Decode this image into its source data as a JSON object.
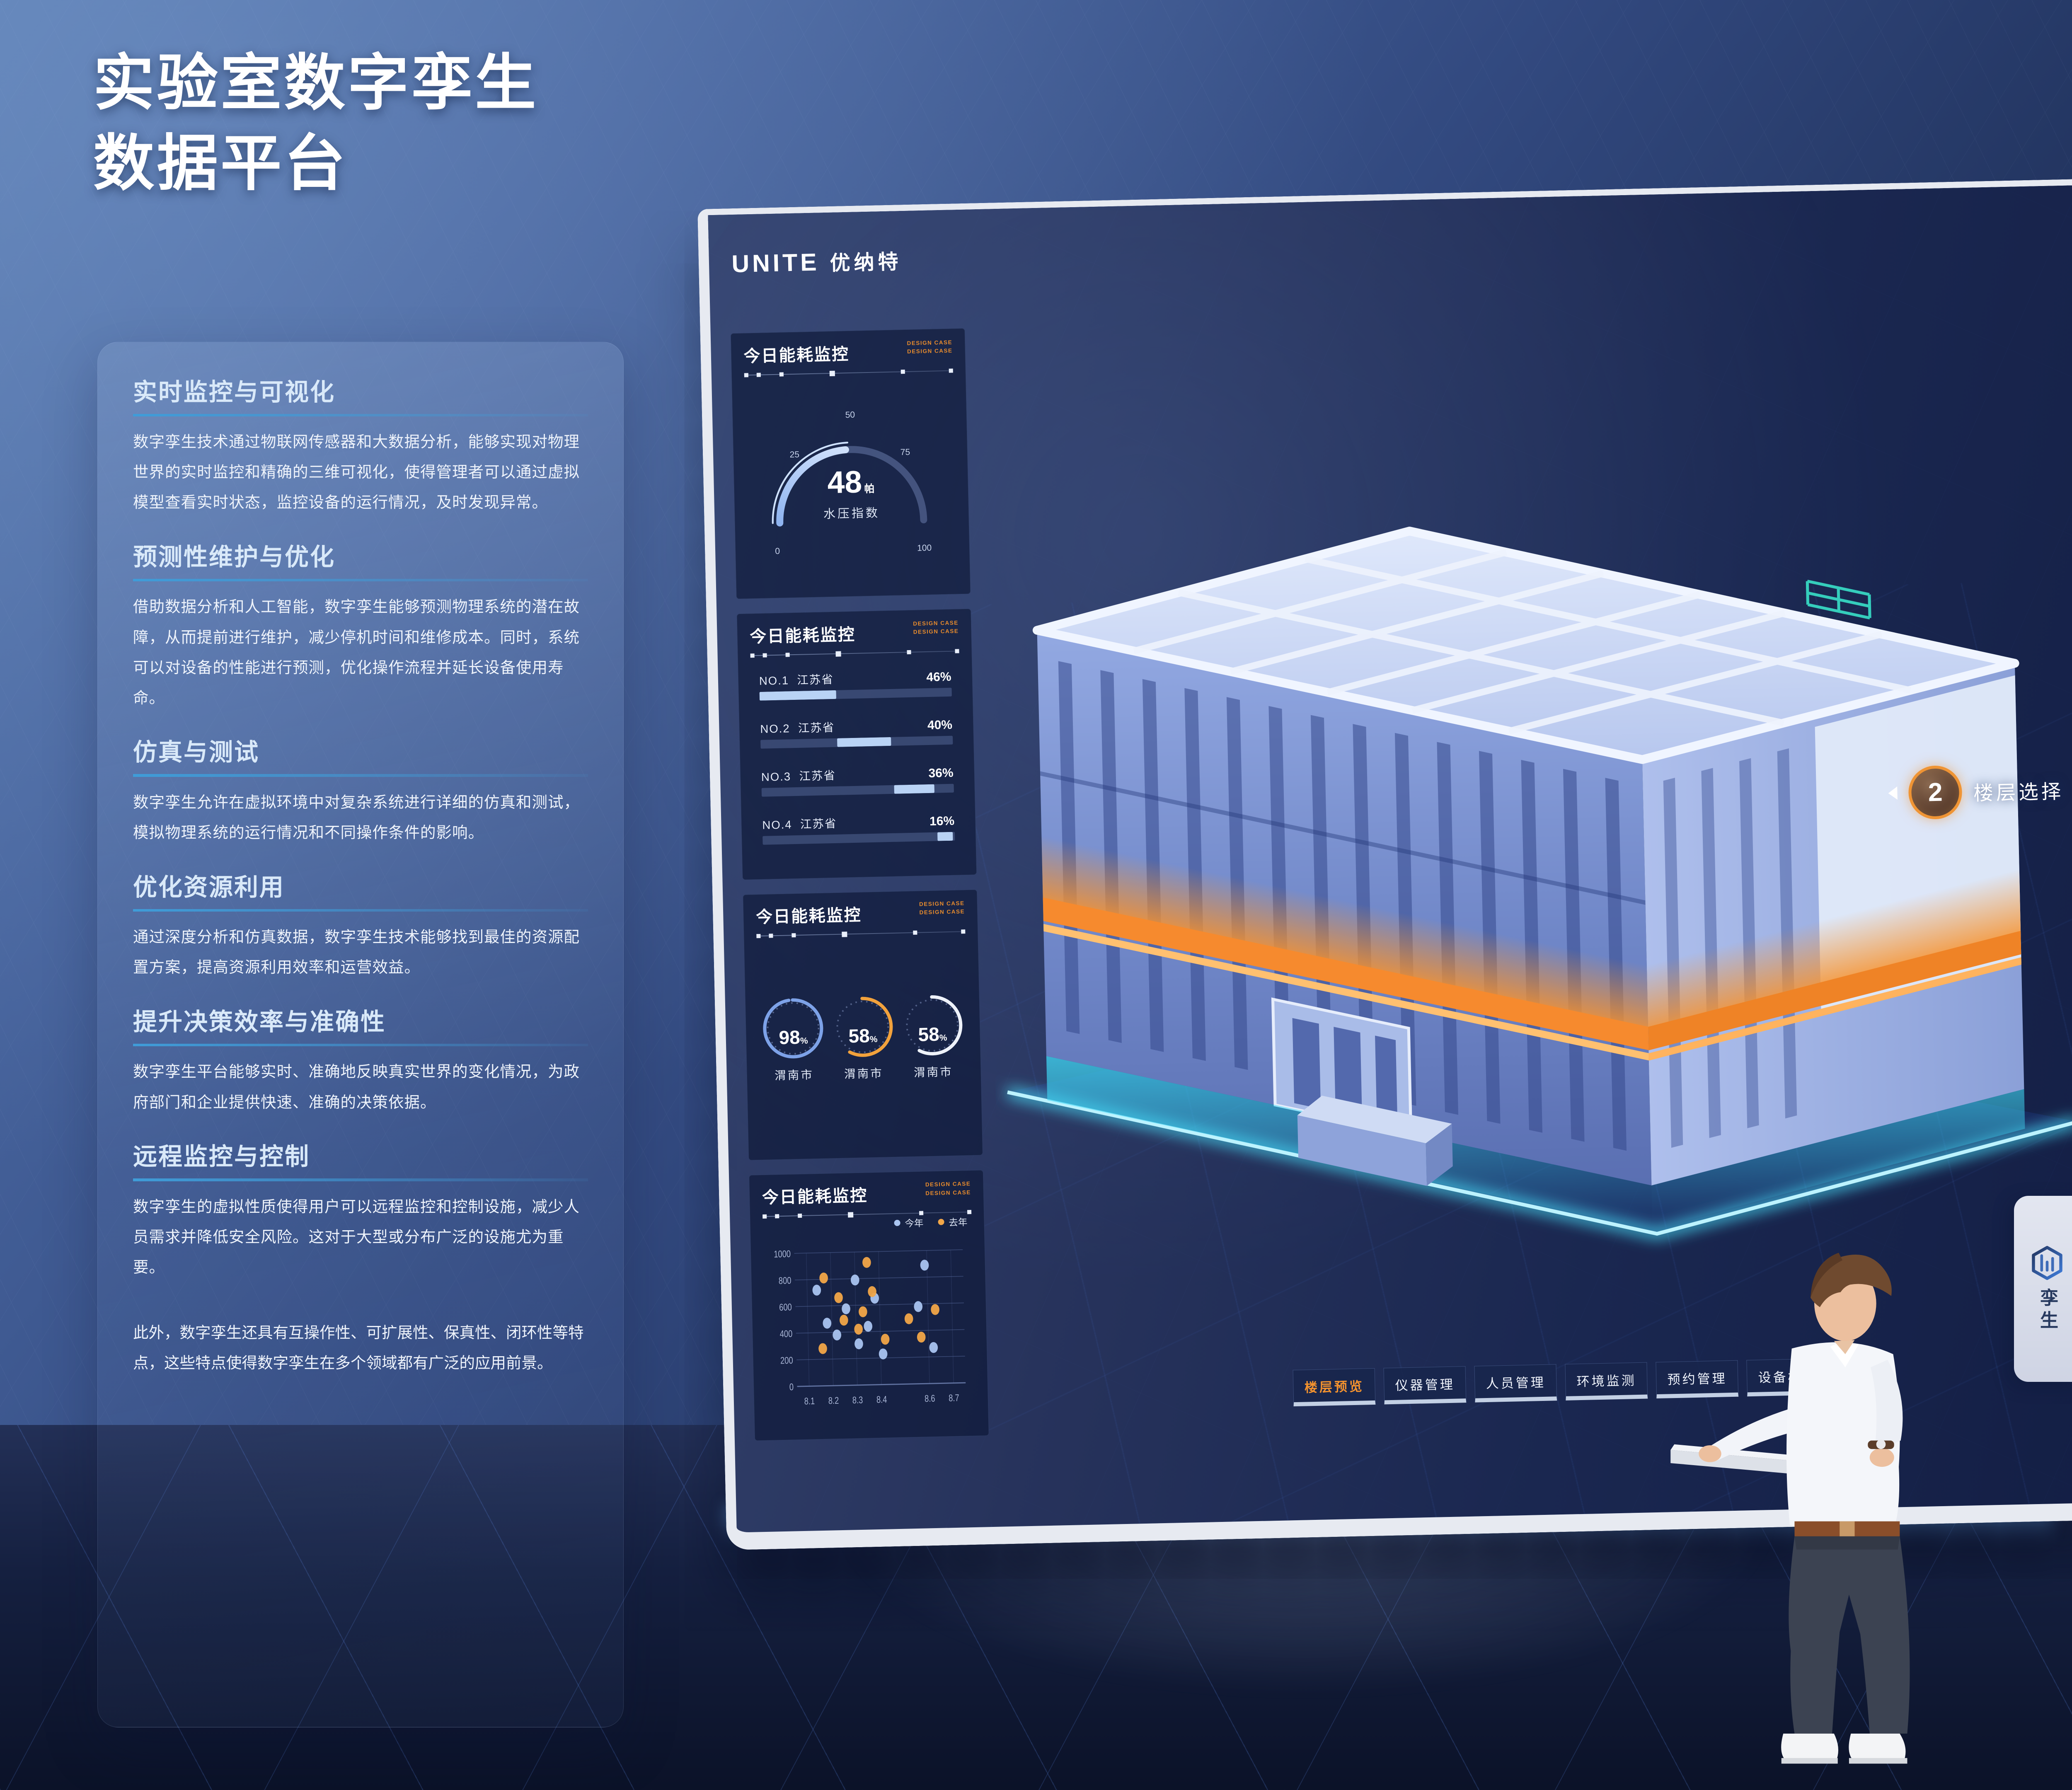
{
  "page": {
    "title_line1": "实验室数字孪生",
    "title_line2": "数据平台"
  },
  "sidebar": {
    "sections": [
      {
        "heading": "实时监控与可视化",
        "body": "数字孪生技术通过物联网传感器和大数据分析，能够实现对物理世界的实时监控和精确的三维可视化，使得管理者可以通过虚拟模型查看实时状态，监控设备的运行情况，及时发现异常。"
      },
      {
        "heading": "预测性维护与优化",
        "body": "借助数据分析和人工智能，数字孪生能够预测物理系统的潜在故障，从而提前进行维护，减少停机时间和维修成本。同时，系统可以对设备的性能进行预测，优化操作流程并延长设备使用寿命。"
      },
      {
        "heading": "仿真与测试",
        "body": "数字孪生允许在虚拟环境中对复杂系统进行详细的仿真和测试，模拟物理系统的运行情况和不同操作条件的影响。"
      },
      {
        "heading": "优化资源利用",
        "body": "通过深度分析和仿真数据，数字孪生技术能够找到最佳的资源配置方案，提高资源利用效率和运营效益。"
      },
      {
        "heading": "提升决策效率与准确性",
        "body": "数字孪生平台能够实时、准确地反映真实世界的变化情况，为政府部门和企业提供快速、准确的决策依据。"
      },
      {
        "heading": "远程监控与控制",
        "body": "数字孪生的虚拟性质使得用户可以远程监控和控制设施，减少人员需求并降低安全风险。这对于大型或分布广泛的设施尤为重要。"
      }
    ],
    "footer": "此外，数字孪生还具有互操作性、可扩展性、保真性、闭环性等特点，这些特点使得数字孪生在多个领域都有广泛的应用前景。"
  },
  "screen": {
    "logo": {
      "en": "UNITE",
      "cn": "优纳特"
    },
    "badge_line1": "DESIGN CASE",
    "badge_line2": "DESIGN CASE"
  },
  "tabs": [
    {
      "label": "楼层预览",
      "active": true
    },
    {
      "label": "仪器管理",
      "active": false
    },
    {
      "label": "人员管理",
      "active": false
    },
    {
      "label": "环境监测",
      "active": false
    },
    {
      "label": "预约管理",
      "active": false
    },
    {
      "label": "设备概况",
      "active": false
    }
  ],
  "floor_selector": {
    "current": "2",
    "label": "楼层选择"
  },
  "side_tab": {
    "label": "孪生"
  },
  "chart_data": [
    {
      "type": "gauge",
      "title": "今日能耗监控",
      "value": 48,
      "unit": "帕",
      "label": "水压指数",
      "min": 0,
      "max": 100,
      "ticks": [
        "0",
        "25",
        "50",
        "75",
        "100"
      ]
    },
    {
      "type": "bar",
      "title": "今日能耗监控",
      "unit": "%",
      "rows": [
        {
          "rank": "NO.1",
          "name": "江苏省",
          "value": "46%"
        },
        {
          "rank": "NO.2",
          "name": "江苏省",
          "value": "40%"
        },
        {
          "rank": "NO.3",
          "name": "江苏省",
          "value": "36%"
        },
        {
          "rank": "NO.4",
          "name": "江苏省",
          "value": "16%"
        }
      ],
      "categories": [
        "NO.1 江苏省",
        "NO.2 江苏省",
        "NO.3 江苏省",
        "NO.4 江苏省"
      ],
      "values": [
        46,
        40,
        36,
        16
      ],
      "bar_segments": [
        {
          "start": 0,
          "width": 40
        },
        {
          "start": 40,
          "width": 28
        },
        {
          "start": 69,
          "width": 21
        },
        {
          "start": 91,
          "width": 8
        }
      ]
    },
    {
      "type": "pie",
      "title": "今日能耗监控",
      "suffix": "%",
      "items": [
        {
          "label": "渭南市",
          "value": 98,
          "color": "#7da2e8"
        },
        {
          "label": "渭南市",
          "value": 58,
          "color": "#f2a23c"
        },
        {
          "label": "渭南市",
          "value": 58,
          "color": "#eef2fa"
        }
      ]
    },
    {
      "type": "scatter",
      "title": "今日能耗监控",
      "x_ticks": [
        "8.1",
        "8.2",
        "8.3",
        "8.4",
        "8.6",
        "8.7"
      ],
      "y_ticks": [
        0,
        200,
        400,
        600,
        800,
        1000
      ],
      "x_range": [
        8.05,
        8.75
      ],
      "y_range": [
        0,
        1000
      ],
      "legend_position": "top-right",
      "series": [
        {
          "name": "今年",
          "color": "#a9c4f0",
          "points": [
            [
              8.14,
              720
            ],
            [
              8.18,
              470
            ],
            [
              8.22,
              380
            ],
            [
              8.26,
              575
            ],
            [
              8.3,
              790
            ],
            [
              8.31,
              310
            ],
            [
              8.35,
              440
            ],
            [
              8.38,
              650
            ],
            [
              8.41,
              230
            ],
            [
              8.56,
              580
            ],
            [
              8.59,
              890
            ],
            [
              8.62,
              270
            ]
          ]
        },
        {
          "name": "去年",
          "color": "#f2a748",
          "points": [
            [
              8.16,
              280
            ],
            [
              8.17,
              810
            ],
            [
              8.23,
              660
            ],
            [
              8.25,
              490
            ],
            [
              8.31,
              420
            ],
            [
              8.33,
              550
            ],
            [
              8.35,
              920
            ],
            [
              8.37,
              700
            ],
            [
              8.42,
              340
            ],
            [
              8.52,
              490
            ],
            [
              8.57,
              350
            ],
            [
              8.63,
              555
            ]
          ]
        }
      ]
    }
  ]
}
